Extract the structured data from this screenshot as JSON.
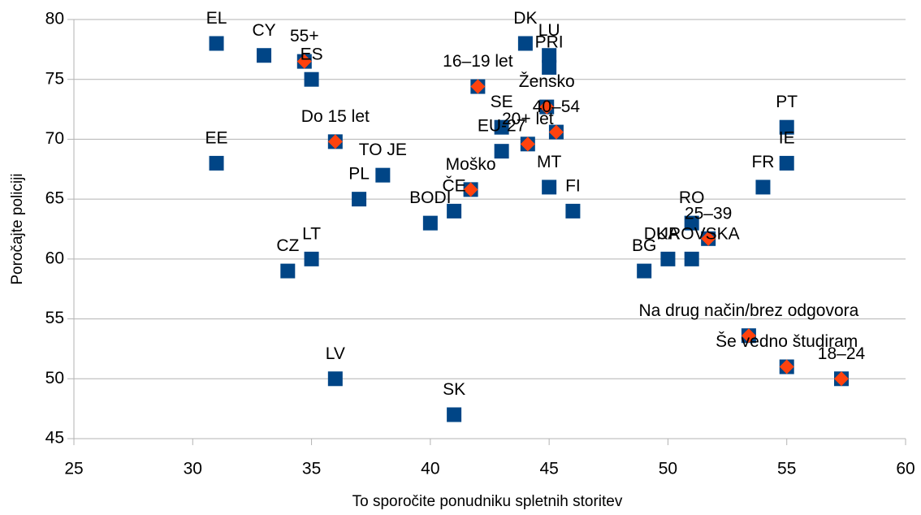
{
  "chart_data": {
    "type": "scatter",
    "x_label": "To sporočite ponudniku spletnih storitev",
    "y_label": "Poročajte policiji",
    "xlim": [
      25,
      60
    ],
    "xticks": [
      25,
      30,
      35,
      40,
      45,
      50,
      55,
      60
    ],
    "ylim": [
      45,
      80
    ],
    "yticks": [
      45,
      50,
      55,
      60,
      65,
      70,
      75,
      80
    ],
    "grid": true,
    "series": [
      {
        "marker": "square",
        "color": "#004586",
        "labels": [
          "EL",
          "CY",
          "ES",
          "DK",
          "LU",
          "PRI",
          "SE",
          "EU-27",
          "EE",
          "TO JE",
          "PL",
          "BODI",
          "ČE",
          "MT",
          "FI",
          "CZ",
          "LT",
          "LV",
          "SK",
          "BG",
          "KA",
          "DUROVSKA",
          "RO",
          "PT",
          "IE",
          "FR"
        ],
        "x": [
          31,
          33,
          35,
          44,
          45,
          45,
          43,
          43,
          31,
          38,
          37,
          40,
          41,
          45,
          46,
          34,
          35,
          36,
          41,
          49,
          50,
          51,
          51,
          55,
          55,
          54
        ],
        "values": [
          78,
          77,
          75,
          78,
          77,
          76,
          71,
          69,
          68,
          67,
          65,
          63,
          64,
          66,
          64,
          59,
          60,
          50,
          47,
          59,
          60,
          60,
          63,
          71,
          68,
          66
        ]
      },
      {
        "marker": "diamond",
        "color": "#ff420e",
        "labels": [
          "55+",
          "16–19 let",
          "Žensko",
          "40–54",
          "20+ let",
          "Do 15 let",
          "Moško",
          "25–39",
          "Na drug način/brez odgovora",
          "Še vedno študiram",
          "18–24"
        ],
        "x": [
          34.7,
          42,
          44.9,
          45.3,
          44.1,
          36,
          41.7,
          51.7,
          53.4,
          55,
          57.3
        ],
        "values": [
          76.5,
          74.4,
          72.7,
          70.6,
          69.6,
          69.8,
          65.8,
          61.7,
          53.6,
          51,
          50
        ]
      }
    ]
  }
}
